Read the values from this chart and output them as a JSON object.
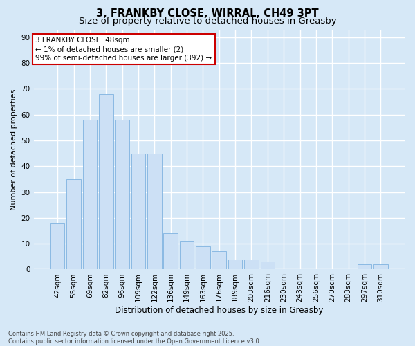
{
  "title": "3, FRANKBY CLOSE, WIRRAL, CH49 3PT",
  "subtitle": "Size of property relative to detached houses in Greasby",
  "xlabel": "Distribution of detached houses by size in Greasby",
  "ylabel": "Number of detached properties",
  "categories": [
    "42sqm",
    "55sqm",
    "69sqm",
    "82sqm",
    "96sqm",
    "109sqm",
    "122sqm",
    "136sqm",
    "149sqm",
    "163sqm",
    "176sqm",
    "189sqm",
    "203sqm",
    "216sqm",
    "230sqm",
    "243sqm",
    "256sqm",
    "270sqm",
    "283sqm",
    "297sqm",
    "310sqm"
  ],
  "values": [
    18,
    35,
    58,
    68,
    58,
    45,
    45,
    14,
    11,
    9,
    7,
    4,
    4,
    3,
    0,
    0,
    0,
    0,
    0,
    2,
    2
  ],
  "bar_color": "#cce0f5",
  "bar_edge_color": "#7fb3e0",
  "background_color": "#d6e8f7",
  "grid_color": "#ffffff",
  "annotation_text": "3 FRANKBY CLOSE: 48sqm\n← 1% of detached houses are smaller (2)\n99% of semi-detached houses are larger (392) →",
  "annotation_box_color": "#ffffff",
  "annotation_box_edge_color": "#cc0000",
  "ylim": [
    0,
    93
  ],
  "yticks": [
    0,
    10,
    20,
    30,
    40,
    50,
    60,
    70,
    80,
    90
  ],
  "footer_text": "Contains HM Land Registry data © Crown copyright and database right 2025.\nContains public sector information licensed under the Open Government Licence v3.0.",
  "title_fontsize": 10.5,
  "subtitle_fontsize": 9.5,
  "xlabel_fontsize": 8.5,
  "ylabel_fontsize": 8,
  "tick_fontsize": 7.5,
  "annotation_fontsize": 7.5,
  "footer_fontsize": 6
}
